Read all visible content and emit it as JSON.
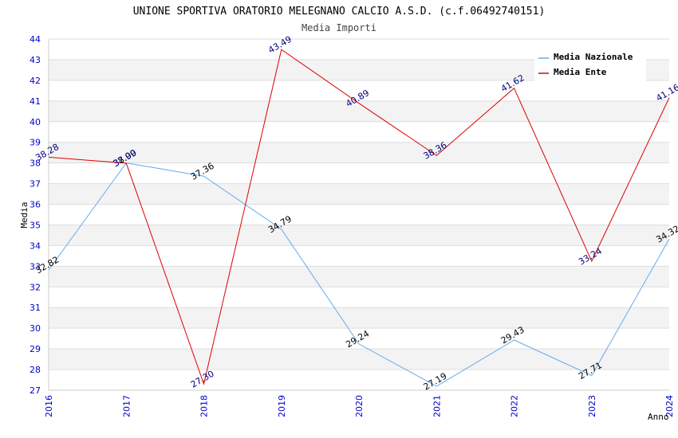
{
  "chart_data": {
    "type": "line",
    "title": "UNIONE SPORTIVA ORATORIO MELEGNANO CALCIO A.S.D. (c.f.06492740151)",
    "subtitle": "Media Importi",
    "xlabel": "Anno",
    "ylabel": "Media",
    "ylim": [
      27,
      44
    ],
    "y_ticks": [
      "27",
      "28",
      "29",
      "30",
      "31",
      "32",
      "33",
      "34",
      "35",
      "36",
      "37",
      "38",
      "39",
      "40",
      "41",
      "42",
      "43",
      "44"
    ],
    "categories": [
      "2016",
      "2017",
      "2018",
      "2019",
      "2020",
      "2021",
      "2022",
      "2023",
      "2024"
    ],
    "grid": true,
    "legend_position": "top-right",
    "series": [
      {
        "name": "Media Nazionale",
        "color": "#66aaee",
        "label_color": "#000000",
        "values": [
          32.82,
          38.0,
          37.36,
          34.79,
          29.24,
          27.19,
          29.43,
          27.71,
          34.32
        ],
        "labels": [
          "32.82",
          "38.00",
          "37.36",
          "34.79",
          "29.24",
          "27.19",
          "29.43",
          "27.71",
          "34.32"
        ]
      },
      {
        "name": "Media Ente",
        "color": "#dd0000",
        "label_color": "#000080",
        "values": [
          38.28,
          37.99,
          27.3,
          43.49,
          40.89,
          38.36,
          41.62,
          33.24,
          41.16
        ],
        "labels": [
          "38.28",
          "37.99",
          "27.30",
          "43.49",
          "40.89",
          "38.36",
          "41.62",
          "33.24",
          "41.16"
        ]
      }
    ]
  }
}
